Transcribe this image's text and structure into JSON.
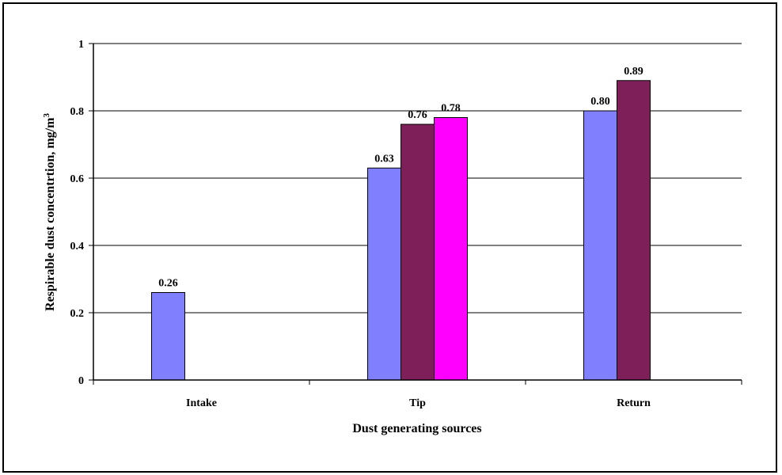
{
  "chart_data": {
    "type": "bar",
    "categories": [
      "Intake",
      "Tip",
      "Return"
    ],
    "series": [
      {
        "values": [
          0.26,
          0.63,
          0.8
        ],
        "color": "#8080FF"
      },
      {
        "values": [
          null,
          0.76,
          0.89
        ],
        "color": "#7F1F5A"
      },
      {
        "values": [
          null,
          0.78,
          null
        ],
        "color": "#FF00FF"
      }
    ],
    "data_labels": [
      [
        "0.26",
        "0.63",
        "0.80"
      ],
      [
        null,
        "0.76",
        "0.89"
      ],
      [
        null,
        "0.78",
        null
      ]
    ],
    "xlabel": "Dust generating sources",
    "ylabel": "Respirable dust concentrtion, mg/m",
    "ylabel_superscript": "3",
    "ylim": [
      0,
      1
    ],
    "yticks": [
      0,
      0.2,
      0.4,
      0.6,
      0.8,
      1
    ],
    "ytick_labels": [
      "0",
      "0.2",
      "0.4",
      "0.6",
      "0.8",
      "1"
    ],
    "grid": true,
    "legend": "none"
  }
}
